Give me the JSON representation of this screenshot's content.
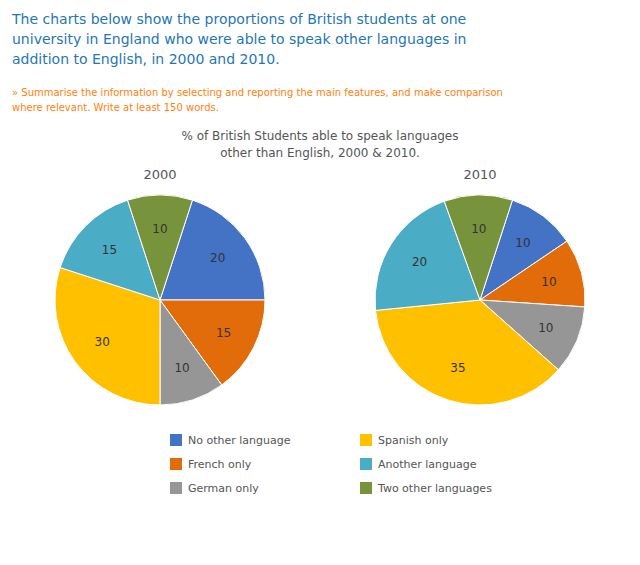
{
  "title": "The charts below show the proportions of British students at one\nuniversity in England who were able to speak other languages in\naddition to English, in 2000 and 2010.",
  "subtitle": "» Summarise the information by selecting and reporting the main features, and make comparison\nwhere relevant. Write at least 150 words.",
  "chart_data": {
    "type": "pie",
    "title": "% of British Students able to speak languages\nother than English, 2000 & 2010.",
    "categories": [
      "No other language",
      "French only",
      "German only",
      "Spanish only",
      "Another language",
      "Two other languages"
    ],
    "colors": [
      "#4472C4",
      "#E36C0A",
      "#969696",
      "#FFC000",
      "#4BACC6",
      "#77933C"
    ],
    "series": [
      {
        "name": "2000",
        "values": [
          20,
          15,
          10,
          30,
          15,
          10
        ]
      },
      {
        "name": "2010",
        "values": [
          10,
          10,
          10,
          35,
          20,
          10
        ]
      }
    ],
    "data_labels": true,
    "legend": "bottom"
  }
}
